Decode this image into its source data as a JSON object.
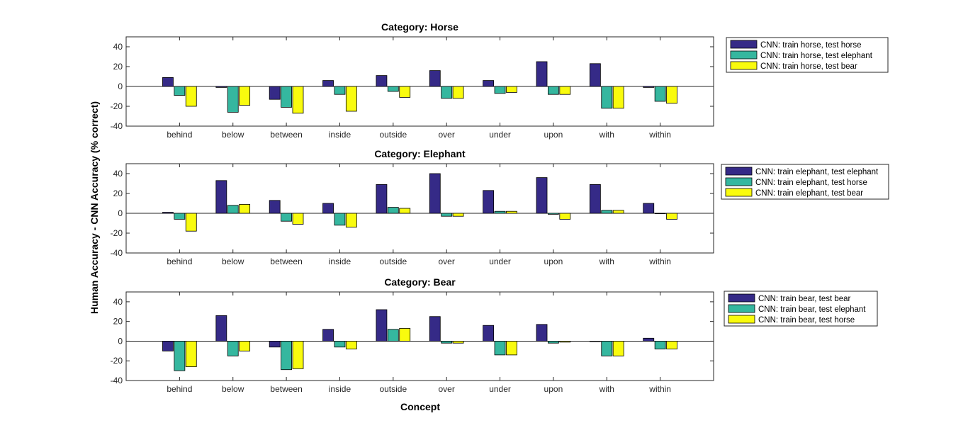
{
  "figure": {
    "ylabel": "Human Accuracy - CNN Accuracy (% correct)",
    "xlabel": "Concept"
  },
  "colors": {
    "series1": "#352a87",
    "series2": "#35b79f",
    "series3": "#f9fb0e",
    "axis": "#262626"
  },
  "chart_data": [
    {
      "type": "bar",
      "title": "Category: Horse",
      "categories": [
        "behind",
        "below",
        "between",
        "inside",
        "outside",
        "over",
        "under",
        "upon",
        "with",
        "within"
      ],
      "ylim": [
        -40,
        50
      ],
      "yticks": [
        -40,
        -20,
        0,
        20,
        40
      ],
      "legend_position": "outside-right",
      "series": [
        {
          "name": "CNN: train horse, test horse",
          "values": [
            9,
            -1,
            -13,
            6,
            11,
            16,
            6,
            25,
            23,
            -1
          ]
        },
        {
          "name": "CNN: train horse, test elephant",
          "values": [
            -9,
            -26,
            -21,
            -8,
            -5,
            -12,
            -7,
            -8,
            -22,
            -15
          ]
        },
        {
          "name": "CNN: train horse, test bear",
          "values": [
            -20,
            -19,
            -27,
            -25,
            -11,
            -12,
            -6,
            -8,
            -22,
            -17
          ]
        }
      ]
    },
    {
      "type": "bar",
      "title": "Category: Elephant",
      "categories": [
        "behind",
        "below",
        "between",
        "inside",
        "outside",
        "over",
        "under",
        "upon",
        "with",
        "within"
      ],
      "ylim": [
        -40,
        50
      ],
      "yticks": [
        -40,
        -20,
        0,
        20,
        40
      ],
      "legend_position": "outside-right",
      "series": [
        {
          "name": "CNN: train elephant, test elephant",
          "values": [
            1,
            33,
            13,
            10,
            29,
            40,
            23,
            36,
            29,
            10
          ]
        },
        {
          "name": "CNN: train elephant, test horse",
          "values": [
            -6,
            8,
            -8,
            -12,
            6,
            -3,
            2,
            -1,
            3,
            0
          ]
        },
        {
          "name": "CNN: train elephant, test bear",
          "values": [
            -18,
            9,
            -11,
            -14,
            5,
            -3,
            2,
            -6,
            3,
            -6
          ]
        }
      ]
    },
    {
      "type": "bar",
      "title": "Category: Bear",
      "categories": [
        "behind",
        "below",
        "between",
        "inside",
        "outside",
        "over",
        "under",
        "upon",
        "with",
        "within"
      ],
      "ylim": [
        -40,
        50
      ],
      "yticks": [
        -40,
        -20,
        0,
        20,
        40
      ],
      "legend_position": "outside-right",
      "series": [
        {
          "name": "CNN: train bear, test bear",
          "values": [
            -10,
            26,
            -6,
            12,
            32,
            25,
            16,
            17,
            0,
            3
          ]
        },
        {
          "name": "CNN: train bear, test elephant",
          "values": [
            -30,
            -15,
            -29,
            -6,
            12,
            -2,
            -14,
            -2,
            -15,
            -8
          ]
        },
        {
          "name": "CNN: train bear, test horse",
          "values": [
            -26,
            -10,
            -28,
            -8,
            13,
            -2,
            -14,
            -1,
            -15,
            -8
          ]
        }
      ]
    }
  ]
}
